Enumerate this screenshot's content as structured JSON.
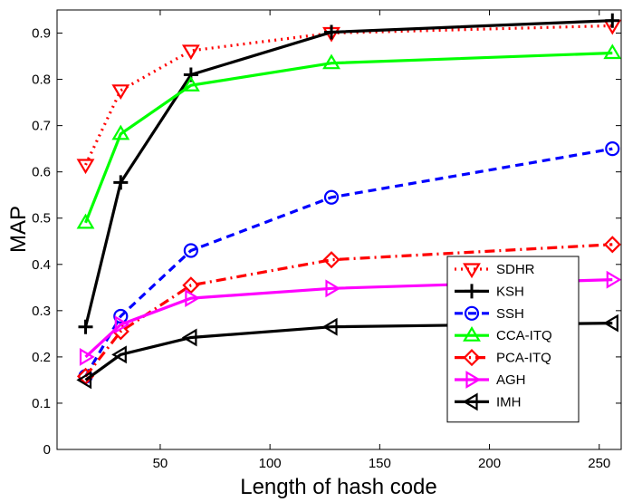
{
  "chart_data": {
    "type": "line",
    "title": "",
    "xlabel": "Length of hash code",
    "ylabel": "MAP",
    "xlim": [
      3,
      260
    ],
    "ylim": [
      0,
      0.95
    ],
    "xticks": [
      50,
      100,
      150,
      200,
      250
    ],
    "yticks": [
      0,
      0.1,
      0.2,
      0.3,
      0.4,
      0.5,
      0.6,
      0.7,
      0.8,
      0.9
    ],
    "x": [
      16,
      32,
      64,
      128,
      256
    ],
    "grid": false,
    "legend_position": "center-right",
    "series": [
      {
        "name": "SDHR",
        "values": [
          0.615,
          0.776,
          0.862,
          0.9,
          0.916
        ],
        "color": "#ff0000",
        "dash": "dotted",
        "marker": "triangle-down"
      },
      {
        "name": "KSH",
        "values": [
          0.265,
          0.577,
          0.81,
          0.902,
          0.927
        ],
        "color": "#000000",
        "dash": "solid",
        "marker": "plus"
      },
      {
        "name": "SSH",
        "values": [
          0.158,
          0.288,
          0.43,
          0.545,
          0.65
        ],
        "color": "#0000ff",
        "dash": "dashed",
        "marker": "circle"
      },
      {
        "name": "CCA-ITQ",
        "values": [
          0.49,
          0.682,
          0.787,
          0.835,
          0.857
        ],
        "color": "#00ff00",
        "dash": "solid",
        "marker": "triangle-up"
      },
      {
        "name": "PCA-ITQ",
        "values": [
          0.158,
          0.255,
          0.355,
          0.41,
          0.443
        ],
        "color": "#ff0000",
        "dash": "dashdot",
        "marker": "diamond"
      },
      {
        "name": "AGH",
        "values": [
          0.2,
          0.27,
          0.327,
          0.348,
          0.367
        ],
        "color": "#ff00ff",
        "dash": "solid",
        "marker": "triangle-right"
      },
      {
        "name": "IMH",
        "values": [
          0.15,
          0.205,
          0.242,
          0.265,
          0.273
        ],
        "color": "#000000",
        "dash": "solid",
        "marker": "triangle-left"
      }
    ]
  }
}
